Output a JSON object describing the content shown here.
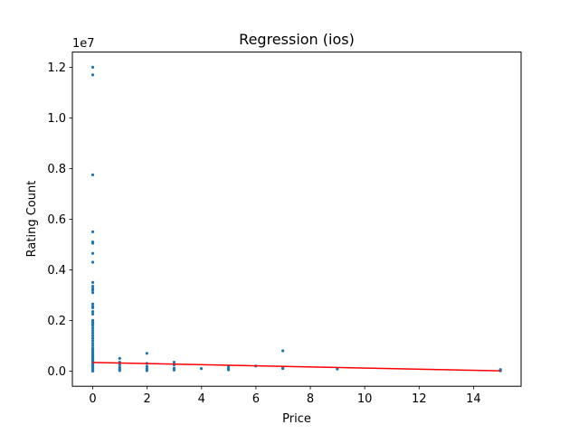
{
  "chart_data": {
    "type": "scatter",
    "title": "Regression (ios)",
    "xlabel": "Price",
    "ylabel": "Rating Count",
    "y_offset_label": "1e7",
    "xlim": [
      -0.75,
      15.75
    ],
    "ylim": [
      -600000,
      12600000
    ],
    "xticks": [
      0,
      2,
      4,
      6,
      8,
      10,
      12,
      14
    ],
    "xtick_labels": [
      "0",
      "2",
      "4",
      "6",
      "8",
      "10",
      "12",
      "14"
    ],
    "yticks": [
      0,
      2000000,
      4000000,
      6000000,
      8000000,
      10000000,
      12000000
    ],
    "ytick_labels": [
      "0.0",
      "0.2",
      "0.4",
      "0.6",
      "0.8",
      "1.0",
      "1.2"
    ],
    "grid": false,
    "colors": {
      "points": "#1f77b4",
      "regression": "#ff0000"
    },
    "series": [
      {
        "kind": "points",
        "x": [
          0,
          0,
          0,
          0,
          0,
          0,
          0,
          0,
          0,
          0,
          0,
          0,
          0,
          0,
          0,
          0,
          0,
          0,
          0,
          0,
          0,
          0,
          0,
          0,
          0,
          0,
          0,
          0,
          0,
          0,
          0,
          0,
          0,
          0,
          0,
          0,
          0,
          0,
          0,
          0,
          0,
          0,
          0,
          0,
          0,
          0,
          0,
          0,
          0,
          0,
          0,
          0,
          0.99,
          0.99,
          0.99,
          0.99,
          0.99,
          0.99,
          1.99,
          1.99,
          1.99,
          1.99,
          1.99,
          2.99,
          2.99,
          2.99,
          2.99,
          3.99,
          4.99,
          4.99,
          4.99,
          5.99,
          6.99,
          6.99,
          6.99,
          8.99,
          14.99,
          14.99
        ],
        "y": [
          12000000,
          11700000,
          7750000,
          5500000,
          5100000,
          5050000,
          4650000,
          4300000,
          3500000,
          3350000,
          3250000,
          3200000,
          3100000,
          2650000,
          2550000,
          2500000,
          2350000,
          2250000,
          2000000,
          1950000,
          1900000,
          1850000,
          1800000,
          1700000,
          1600000,
          1500000,
          1400000,
          1300000,
          1200000,
          1100000,
          1000000,
          900000,
          850000,
          800000,
          750000,
          700000,
          650000,
          600000,
          550000,
          500000,
          450000,
          400000,
          350000,
          300000,
          250000,
          200000,
          150000,
          100000,
          60000,
          30000,
          10000,
          0,
          500000,
          350000,
          250000,
          150000,
          80000,
          20000,
          700000,
          300000,
          180000,
          90000,
          20000,
          350000,
          250000,
          120000,
          40000,
          100000,
          200000,
          110000,
          50000,
          200000,
          800000,
          150000,
          100000,
          80000,
          60000,
          10000
        ]
      },
      {
        "kind": "regression_line",
        "x": [
          0,
          14.99
        ],
        "y": [
          340000,
          10000
        ]
      }
    ]
  }
}
